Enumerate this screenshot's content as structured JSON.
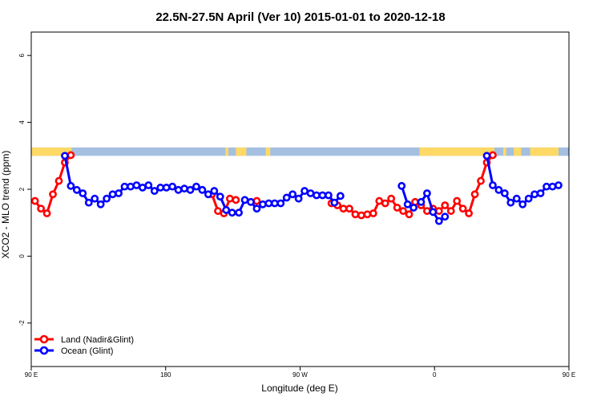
{
  "chart_data": {
    "type": "line",
    "title": "22.5N-27.5N April (Ver 10)   2015-01-01 to 2020-12-18",
    "xlabel": "Longitude (deg E)",
    "ylabel": "XCO2 - MLO trend (ppm)",
    "xlim": [
      90,
      450
    ],
    "ylim": [
      -3.3,
      6.7
    ],
    "x_ticks": [
      {
        "value": 90,
        "label": "90 E"
      },
      {
        "value": 180,
        "label": "180"
      },
      {
        "value": 270,
        "label": "90 W"
      },
      {
        "value": 360,
        "label": "0"
      },
      {
        "value": 450,
        "label": "90 E"
      },
      {
        "value": 540,
        "label": "180"
      }
    ],
    "y_ticks": [
      {
        "value": -2,
        "label": "-2"
      },
      {
        "value": 0,
        "label": "0"
      },
      {
        "value": 2,
        "label": "2"
      },
      {
        "value": 4,
        "label": "4"
      },
      {
        "value": 6,
        "label": "6"
      }
    ],
    "legend_position": "bottom-left",
    "grid": false,
    "land_ocean_band": {
      "ymin": 3.0,
      "ymax": 3.25,
      "land_color": "#FFD966",
      "ocean_color": "#A4BFE0",
      "land_ranges": [
        [
          90,
          117
        ],
        [
          220,
          222
        ],
        [
          227,
          234
        ],
        [
          247,
          250
        ],
        [
          350,
          400
        ],
        [
          406,
          408
        ],
        [
          413,
          418
        ],
        [
          424,
          443
        ],
        [
          450,
          477
        ],
        [
          490,
          492
        ],
        [
          497,
          504
        ]
      ]
    },
    "series": [
      {
        "name": "Land (Nadir&Glint)",
        "color": "#FF0000",
        "segments": [
          [
            [
              92.5,
              1.65
            ],
            [
              96.5,
              1.42
            ],
            [
              100.5,
              1.28
            ],
            [
              104.5,
              1.85
            ],
            [
              108.5,
              2.25
            ],
            [
              112.5,
              2.8
            ],
            [
              116.5,
              3.02
            ]
          ],
          [
            [
              211,
              1.85
            ],
            [
              215,
              1.35
            ],
            [
              219,
              1.28
            ],
            [
              223,
              1.72
            ],
            [
              227,
              1.68
            ]
          ],
          [
            [
              241,
              1.65
            ]
          ],
          [
            [
              291,
              1.58
            ],
            [
              295,
              1.52
            ],
            [
              299,
              1.42
            ],
            [
              303,
              1.42
            ],
            [
              307,
              1.25
            ],
            [
              311,
              1.22
            ],
            [
              315,
              1.25
            ],
            [
              319,
              1.28
            ],
            [
              323,
              1.65
            ],
            [
              327,
              1.58
            ],
            [
              331,
              1.72
            ],
            [
              335,
              1.45
            ],
            [
              339,
              1.35
            ],
            [
              343,
              1.25
            ],
            [
              347,
              1.62
            ],
            [
              351,
              1.52
            ],
            [
              355,
              1.35
            ],
            [
              359,
              1.42
            ],
            [
              363,
              1.35
            ],
            [
              367,
              1.52
            ],
            [
              371,
              1.35
            ],
            [
              375,
              1.65
            ],
            [
              379,
              1.42
            ],
            [
              383,
              1.28
            ],
            [
              387,
              1.85
            ],
            [
              391,
              2.25
            ],
            [
              395,
              2.8
            ],
            [
              399,
              3.02
            ]
          ]
        ]
      },
      {
        "name": "Ocean (Glint)",
        "color": "#0000FF",
        "segments": [
          [
            [
              112.5,
              3.0
            ],
            [
              116.5,
              2.1
            ],
            [
              120.5,
              1.98
            ],
            [
              124.5,
              1.88
            ],
            [
              128.5,
              1.6
            ],
            [
              132.5,
              1.72
            ],
            [
              136.5,
              1.55
            ],
            [
              140.5,
              1.72
            ],
            [
              144.5,
              1.85
            ],
            [
              148.5,
              1.88
            ],
            [
              152.5,
              2.08
            ],
            [
              156.5,
              2.08
            ],
            [
              160.5,
              2.12
            ],
            [
              164.5,
              2.05
            ],
            [
              168.5,
              2.12
            ],
            [
              172.5,
              1.95
            ],
            [
              176.5,
              2.05
            ],
            [
              180.5,
              2.05
            ],
            [
              184.5,
              2.08
            ],
            [
              188.5,
              1.98
            ],
            [
              192.5,
              2.02
            ],
            [
              196.5,
              1.98
            ],
            [
              200.5,
              2.08
            ],
            [
              204.5,
              1.98
            ],
            [
              208.5,
              1.85
            ],
            [
              212.5,
              1.95
            ],
            [
              216.5,
              1.78
            ],
            [
              220.5,
              1.38
            ],
            [
              224.5,
              1.3
            ]
          ],
          [
            [
              229,
              1.3
            ],
            [
              233,
              1.68
            ],
            [
              237,
              1.62
            ],
            [
              241,
              1.42
            ],
            [
              245,
              1.55
            ],
            [
              249,
              1.58
            ],
            [
              253,
              1.58
            ],
            [
              257,
              1.58
            ],
            [
              261,
              1.75
            ],
            [
              265,
              1.85
            ],
            [
              269,
              1.72
            ],
            [
              273,
              1.95
            ],
            [
              277,
              1.88
            ],
            [
              281,
              1.82
            ],
            [
              285,
              1.82
            ],
            [
              289,
              1.82
            ],
            [
              293,
              1.6
            ],
            [
              297,
              1.8
            ]
          ],
          [
            [
              338,
              2.1
            ],
            [
              342,
              1.55
            ],
            [
              346,
              1.45
            ]
          ],
          [
            [
              351,
              1.62
            ],
            [
              355,
              1.88
            ],
            [
              359,
              1.32
            ],
            [
              363,
              1.05
            ],
            [
              367,
              1.18
            ]
          ],
          [
            [
              395,
              3.0
            ],
            [
              399,
              2.12
            ],
            [
              403,
              1.98
            ],
            [
              407,
              1.88
            ],
            [
              411,
              1.6
            ],
            [
              415,
              1.72
            ],
            [
              419,
              1.55
            ],
            [
              423,
              1.72
            ],
            [
              427,
              1.85
            ],
            [
              431,
              1.88
            ],
            [
              435,
              2.08
            ],
            [
              439,
              2.08
            ],
            [
              443,
              2.12
            ]
          ]
        ]
      }
    ]
  }
}
